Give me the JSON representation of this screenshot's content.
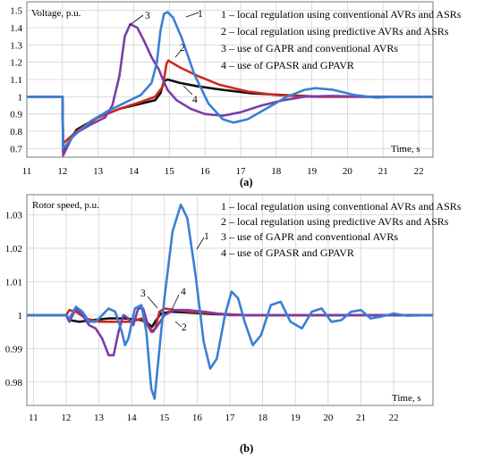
{
  "chart_data": [
    {
      "type": "line",
      "caption": "(a)",
      "ylabel": "Voltage, p.u.",
      "xlabel": "Time, s",
      "xlim": [
        11,
        22.4
      ],
      "ylim": [
        0.65,
        1.55
      ],
      "xticks": [
        "11",
        "12",
        "13",
        "14",
        "15",
        "16",
        "17",
        "18",
        "19",
        "20",
        "21",
        "22"
      ],
      "yticks": [
        "0.7",
        "0.8",
        "0.9",
        "1",
        "1.1",
        "1.2",
        "1.3",
        "1.4",
        "1.5"
      ],
      "grid": true,
      "legend": [
        "1 – local regulation using conventional AVRs and ASRs",
        "2 – local regulation using predictive AVRs and ASRs",
        "3 – use of GAPR and conventional AVRs",
        "4 – use of GPASR and GPAVR"
      ],
      "legend_position": "top-right",
      "curve_labels": [
        "1",
        "2",
        "3",
        "4"
      ],
      "series": [
        {
          "name": "1",
          "color": "#3a7fd5",
          "points": [
            [
              11,
              1
            ],
            [
              12,
              1
            ],
            [
              12.02,
              0.7
            ],
            [
              12.3,
              0.77
            ],
            [
              12.8,
              0.86
            ],
            [
              13.3,
              0.92
            ],
            [
              13.8,
              0.97
            ],
            [
              14.2,
              1.01
            ],
            [
              14.5,
              1.08
            ],
            [
              14.65,
              1.2
            ],
            [
              14.75,
              1.38
            ],
            [
              14.85,
              1.48
            ],
            [
              14.95,
              1.49
            ],
            [
              15.1,
              1.46
            ],
            [
              15.35,
              1.34
            ],
            [
              15.7,
              1.13
            ],
            [
              16.1,
              0.96
            ],
            [
              16.5,
              0.87
            ],
            [
              16.8,
              0.85
            ],
            [
              17.2,
              0.87
            ],
            [
              17.8,
              0.94
            ],
            [
              18.3,
              1.0
            ],
            [
              18.8,
              1.04
            ],
            [
              19.1,
              1.05
            ],
            [
              19.6,
              1.04
            ],
            [
              20.2,
              1.01
            ],
            [
              20.8,
              0.995
            ],
            [
              21.4,
              1.0
            ],
            [
              22.4,
              1.0
            ]
          ]
        },
        {
          "name": "2",
          "color": "#cc2a1f",
          "points": [
            [
              11,
              1
            ],
            [
              12,
              1
            ],
            [
              12.02,
              0.73
            ],
            [
              12.4,
              0.8
            ],
            [
              13,
              0.88
            ],
            [
              13.6,
              0.93
            ],
            [
              14.2,
              0.97
            ],
            [
              14.6,
              1.0
            ],
            [
              14.82,
              1.06
            ],
            [
              14.92,
              1.19
            ],
            [
              14.97,
              1.21
            ],
            [
              15.3,
              1.17
            ],
            [
              15.8,
              1.12
            ],
            [
              16.4,
              1.07
            ],
            [
              17.2,
              1.03
            ],
            [
              18,
              1.01
            ],
            [
              19,
              1.0
            ],
            [
              22.4,
              1.0
            ]
          ]
        },
        {
          "name": "3",
          "color": "#7b3ea8",
          "points": [
            [
              11,
              1
            ],
            [
              12,
              1
            ],
            [
              12.02,
              0.66
            ],
            [
              12.3,
              0.78
            ],
            [
              12.8,
              0.84
            ],
            [
              13.2,
              0.88
            ],
            [
              13.4,
              0.95
            ],
            [
              13.6,
              1.12
            ],
            [
              13.75,
              1.35
            ],
            [
              13.9,
              1.42
            ],
            [
              14.1,
              1.4
            ],
            [
              14.3,
              1.32
            ],
            [
              14.5,
              1.23
            ],
            [
              14.7,
              1.16
            ],
            [
              14.82,
              1.1
            ],
            [
              14.95,
              1.04
            ],
            [
              15.2,
              0.98
            ],
            [
              15.6,
              0.93
            ],
            [
              16,
              0.9
            ],
            [
              16.5,
              0.89
            ],
            [
              17,
              0.91
            ],
            [
              17.6,
              0.95
            ],
            [
              18.2,
              0.98
            ],
            [
              18.8,
              1.0
            ],
            [
              19.5,
              1.005
            ],
            [
              20.5,
              1.0
            ],
            [
              22.4,
              1.0
            ]
          ]
        },
        {
          "name": "4",
          "color": "#111111",
          "points": [
            [
              11,
              1
            ],
            [
              12,
              1
            ],
            [
              12.02,
              0.69
            ],
            [
              12.4,
              0.81
            ],
            [
              13,
              0.88
            ],
            [
              13.6,
              0.93
            ],
            [
              14.2,
              0.96
            ],
            [
              14.6,
              0.98
            ],
            [
              14.75,
              1.02
            ],
            [
              14.85,
              1.09
            ],
            [
              14.95,
              1.1
            ],
            [
              15.3,
              1.08
            ],
            [
              15.8,
              1.06
            ],
            [
              16.5,
              1.04
            ],
            [
              17.3,
              1.02
            ],
            [
              18.2,
              1.01
            ],
            [
              19.2,
              1.0
            ],
            [
              22.4,
              1.0
            ]
          ]
        }
      ]
    },
    {
      "type": "line",
      "caption": "(b)",
      "ylabel": "Rotor speed, p.u.",
      "xlabel": "Time, s",
      "xlim": [
        10.8,
        23.2
      ],
      "ylim": [
        0.973,
        1.036
      ],
      "xticks": [
        "11",
        "12",
        "13",
        "14",
        "15",
        "16",
        "17",
        "18",
        "19",
        "20",
        "21",
        "22"
      ],
      "yticks": [
        "0.98",
        "0.99",
        "1",
        "1.01",
        "1.02",
        "1.03"
      ],
      "grid": true,
      "legend": [
        "1 – local regulation using conventional AVRs and ASRs",
        "2 – local regulation using predictive AVRs and ASRs",
        "3 – use of GAPR and conventional AVRs",
        "4 – use of GPASR and GPAVR"
      ],
      "legend_position": "top-right",
      "curve_labels": [
        "1",
        "3",
        "4",
        "2"
      ],
      "series": [
        {
          "name": "1",
          "color": "#3a7fd5",
          "points": [
            [
              10.8,
              1
            ],
            [
              12,
              1
            ],
            [
              12.1,
              0.999
            ],
            [
              12.3,
              1.0025
            ],
            [
              12.5,
              1.001
            ],
            [
              12.7,
              0.998
            ],
            [
              12.9,
              0.998
            ],
            [
              13.1,
              1.0
            ],
            [
              13.3,
              1.002
            ],
            [
              13.5,
              1.001
            ],
            [
              13.7,
              0.995
            ],
            [
              13.8,
              0.991
            ],
            [
              13.9,
              0.993
            ],
            [
              14.1,
              1.002
            ],
            [
              14.3,
              1.003
            ],
            [
              14.45,
              0.995
            ],
            [
              14.6,
              0.978
            ],
            [
              14.7,
              0.975
            ],
            [
              14.85,
              0.99
            ],
            [
              15,
              1.005
            ],
            [
              15.25,
              1.025
            ],
            [
              15.5,
              1.033
            ],
            [
              15.7,
              1.029
            ],
            [
              15.95,
              1.012
            ],
            [
              16.2,
              0.992
            ],
            [
              16.4,
              0.984
            ],
            [
              16.6,
              0.987
            ],
            [
              16.85,
              1.0
            ],
            [
              17.05,
              1.007
            ],
            [
              17.25,
              1.005
            ],
            [
              17.45,
              0.998
            ],
            [
              17.7,
              0.991
            ],
            [
              17.95,
              0.994
            ],
            [
              18.25,
              1.003
            ],
            [
              18.55,
              1.004
            ],
            [
              18.85,
              0.998
            ],
            [
              19.2,
              0.996
            ],
            [
              19.5,
              1.001
            ],
            [
              19.8,
              1.002
            ],
            [
              20.1,
              0.998
            ],
            [
              20.4,
              0.9985
            ],
            [
              20.7,
              1.001
            ],
            [
              21.0,
              1.0015
            ],
            [
              21.3,
              0.999
            ],
            [
              21.6,
              0.9995
            ],
            [
              22.0,
              1.0005
            ],
            [
              22.4,
              0.9998
            ],
            [
              23.2,
              1
            ]
          ]
        },
        {
          "name": "2",
          "color": "#cc2a1f",
          "points": [
            [
              10.8,
              1
            ],
            [
              12,
              1
            ],
            [
              12.1,
              1.0015
            ],
            [
              12.3,
              1.001
            ],
            [
              12.6,
              0.999
            ],
            [
              13,
              0.998
            ],
            [
              13.5,
              0.998
            ],
            [
              14,
              0.998
            ],
            [
              14.3,
              0.999
            ],
            [
              14.45,
              0.9975
            ],
            [
              14.6,
              0.995
            ],
            [
              14.72,
              0.996
            ],
            [
              14.85,
              1.001
            ],
            [
              15,
              1.002
            ],
            [
              15.3,
              1.0015
            ],
            [
              15.8,
              1.001
            ],
            [
              16.5,
              1.0005
            ],
            [
              17.5,
              1.0
            ],
            [
              23.2,
              1
            ]
          ]
        },
        {
          "name": "3",
          "color": "#7b3ea8",
          "points": [
            [
              10.8,
              1
            ],
            [
              12,
              1
            ],
            [
              12.1,
              0.998
            ],
            [
              12.3,
              1.002
            ],
            [
              12.5,
              1.0
            ],
            [
              12.7,
              0.997
            ],
            [
              12.9,
              0.996
            ],
            [
              13.1,
              0.993
            ],
            [
              13.3,
              0.988
            ],
            [
              13.45,
              0.988
            ],
            [
              13.6,
              0.995
            ],
            [
              13.75,
              1.0
            ],
            [
              13.9,
              0.999
            ],
            [
              14.05,
              0.997
            ],
            [
              14.2,
              1.002
            ],
            [
              14.35,
              1.002
            ],
            [
              14.5,
              0.997
            ],
            [
              14.65,
              0.995
            ],
            [
              14.8,
              0.997
            ],
            [
              15,
              1.0
            ],
            [
              15.3,
              1.0015
            ],
            [
              15.7,
              1.0015
            ],
            [
              16.2,
              1.001
            ],
            [
              17,
              1.0
            ],
            [
              23.2,
              1
            ]
          ]
        },
        {
          "name": "4",
          "color": "#111111",
          "points": [
            [
              10.8,
              1
            ],
            [
              12,
              1
            ],
            [
              12.1,
              0.9985
            ],
            [
              12.4,
              0.998
            ],
            [
              12.8,
              0.9985
            ],
            [
              13.3,
              0.999
            ],
            [
              13.8,
              0.999
            ],
            [
              14.3,
              0.9985
            ],
            [
              14.5,
              0.9975
            ],
            [
              14.62,
              0.9965
            ],
            [
              14.75,
              0.9985
            ],
            [
              14.9,
              1.0005
            ],
            [
              15.2,
              1.001
            ],
            [
              15.7,
              1.0008
            ],
            [
              16.5,
              1.0003
            ],
            [
              17.5,
              1.0
            ],
            [
              23.2,
              1
            ]
          ]
        }
      ]
    }
  ]
}
